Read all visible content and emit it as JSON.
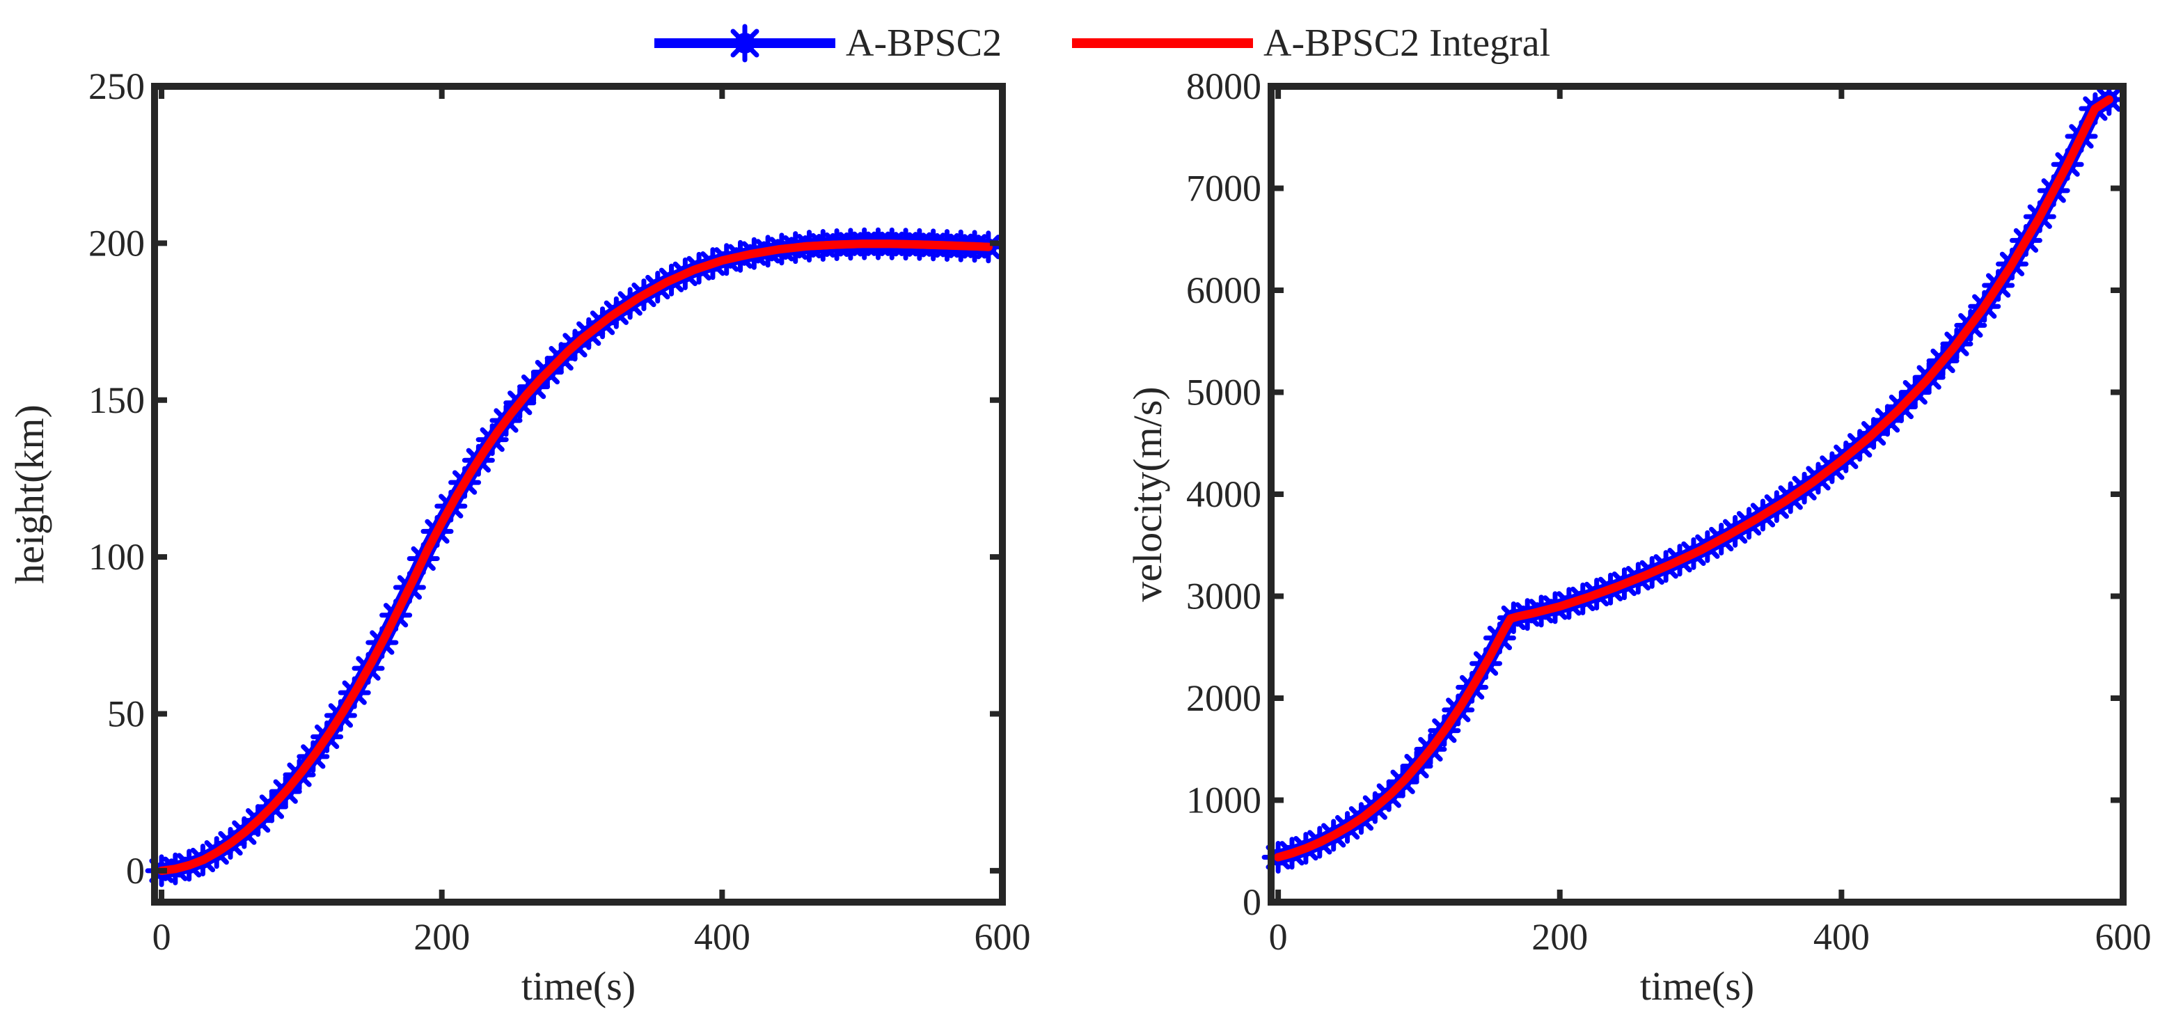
{
  "colors": {
    "series_solution": "#0000ff",
    "series_integral": "#ff0000",
    "axes": "#262626",
    "background": "#ffffff"
  },
  "chart_data": [
    {
      "type": "line",
      "xlabel": "time(s)",
      "ylabel": "height(km)",
      "xlim": [
        -5,
        600
      ],
      "ylim": [
        -10,
        250
      ],
      "xticks": [
        0,
        200,
        400,
        600
      ],
      "yticks": [
        0,
        50,
        100,
        150,
        200,
        250
      ],
      "legend": "top-center",
      "series": [
        {
          "name": "A-BPSC2",
          "style": "line-with-asterisk-markers",
          "x": [
            0,
            10,
            20,
            30,
            40,
            50,
            60,
            70,
            80,
            90,
            100,
            110,
            120,
            130,
            140,
            150,
            160,
            170,
            180,
            190,
            200,
            210,
            220,
            230,
            240,
            250,
            260,
            270,
            280,
            290,
            300,
            320,
            340,
            360,
            380,
            400,
            420,
            440,
            460,
            480,
            500,
            520,
            540,
            560,
            580,
            590
          ],
          "y": [
            0,
            0.6,
            1.8,
            3.5,
            6,
            9,
            12.5,
            16.5,
            21,
            26,
            31.5,
            37.5,
            44,
            51,
            58.5,
            66.5,
            75,
            84,
            93,
            102.5,
            111,
            119,
            126.5,
            133.5,
            140,
            146,
            151.5,
            156.5,
            161,
            165.5,
            169.5,
            176.5,
            182.5,
            187.5,
            191.5,
            194.5,
            196.5,
            198,
            199,
            199.5,
            199.8,
            199.8,
            199.6,
            199.3,
            199,
            198.8
          ]
        },
        {
          "name": "A-BPSC2 Integral",
          "style": "solid-line",
          "x": [
            0,
            10,
            20,
            30,
            40,
            50,
            60,
            70,
            80,
            90,
            100,
            110,
            120,
            130,
            140,
            150,
            160,
            170,
            180,
            190,
            200,
            210,
            220,
            230,
            240,
            250,
            260,
            270,
            280,
            290,
            300,
            320,
            340,
            360,
            380,
            400,
            420,
            440,
            460,
            480,
            500,
            520,
            540,
            560,
            580,
            590
          ],
          "y": [
            0,
            0.6,
            1.8,
            3.5,
            6,
            9,
            12.5,
            16.5,
            21,
            26,
            31.5,
            37.5,
            44,
            51,
            58.5,
            66.5,
            75,
            84,
            93,
            102.5,
            111,
            119,
            126.5,
            133.5,
            140,
            146,
            151.5,
            156.5,
            161,
            165.5,
            169.5,
            176.5,
            182.5,
            187.5,
            191.5,
            194.5,
            196.5,
            198,
            199,
            199.5,
            199.8,
            199.8,
            199.6,
            199.3,
            199,
            198.8
          ]
        }
      ]
    },
    {
      "type": "line",
      "xlabel": "time(s)",
      "ylabel": "velocity(m/s)",
      "xlim": [
        -5,
        600
      ],
      "ylim": [
        0,
        8000
      ],
      "xticks": [
        0,
        200,
        400,
        600
      ],
      "yticks": [
        0,
        1000,
        2000,
        3000,
        4000,
        5000,
        6000,
        7000,
        8000
      ],
      "legend": "top-center",
      "series": [
        {
          "name": "A-BPSC2",
          "style": "line-with-asterisk-markers",
          "x": [
            0,
            10,
            20,
            30,
            40,
            50,
            60,
            70,
            80,
            90,
            100,
            110,
            120,
            130,
            140,
            150,
            160,
            165,
            170,
            180,
            200,
            220,
            240,
            260,
            280,
            300,
            320,
            340,
            360,
            380,
            400,
            420,
            440,
            460,
            480,
            500,
            520,
            540,
            560,
            570,
            580,
            590
          ],
          "y": [
            440,
            480,
            530,
            590,
            660,
            740,
            830,
            940,
            1060,
            1200,
            1360,
            1530,
            1720,
            1930,
            2160,
            2400,
            2660,
            2780,
            2800,
            2830,
            2900,
            2990,
            3090,
            3200,
            3320,
            3450,
            3600,
            3760,
            3930,
            4120,
            4330,
            4560,
            4820,
            5110,
            5440,
            5810,
            6230,
            6700,
            7220,
            7500,
            7780,
            7870
          ]
        },
        {
          "name": "A-BPSC2 Integral",
          "style": "solid-line",
          "x": [
            0,
            10,
            20,
            30,
            40,
            50,
            60,
            70,
            80,
            90,
            100,
            110,
            120,
            130,
            140,
            150,
            160,
            165,
            170,
            180,
            200,
            220,
            240,
            260,
            280,
            300,
            320,
            340,
            360,
            380,
            400,
            420,
            440,
            460,
            480,
            500,
            520,
            540,
            560,
            570,
            580,
            590
          ],
          "y": [
            440,
            480,
            530,
            590,
            660,
            740,
            830,
            940,
            1060,
            1200,
            1360,
            1530,
            1720,
            1930,
            2160,
            2400,
            2660,
            2780,
            2800,
            2830,
            2900,
            2990,
            3090,
            3200,
            3320,
            3450,
            3600,
            3760,
            3930,
            4120,
            4330,
            4560,
            4820,
            5110,
            5440,
            5810,
            6230,
            6700,
            7220,
            7500,
            7780,
            7870
          ]
        }
      ]
    }
  ]
}
